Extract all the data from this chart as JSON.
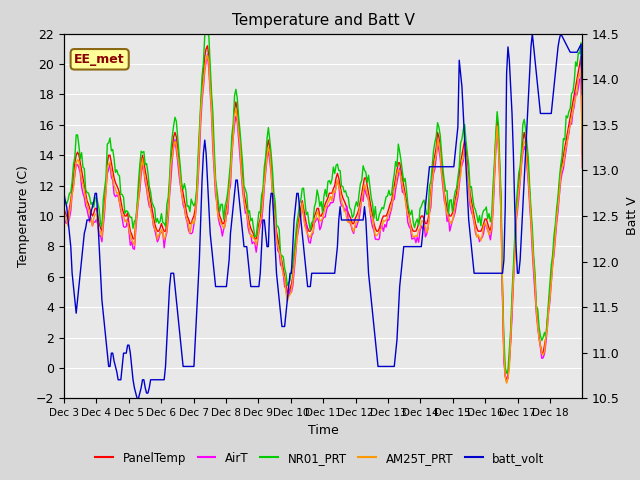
{
  "title": "Temperature and Batt V",
  "xlabel": "Time",
  "ylabel_left": "Temperature (C)",
  "ylabel_right": "Batt V",
  "annotation": "EE_met",
  "ylim_left": [
    -2,
    22
  ],
  "ylim_right": [
    10.5,
    14.5
  ],
  "fig_facecolor": "#d8d8d8",
  "ax_facecolor": "#e8e8e8",
  "grid_color": "#ffffff",
  "series_colors": {
    "PanelTemp": "#ff0000",
    "AirT": "#ff00ff",
    "NR01_PRT": "#00cc00",
    "AM25T_PRT": "#ff9900",
    "batt_volt": "#0000cc"
  },
  "xtick_labels": [
    "Dec 3",
    "Dec 4",
    "Dec 5",
    "Dec 6",
    "Dec 7",
    "Dec 8",
    "Dec 9",
    "Dec 10",
    "Dec 11",
    "Dec 12",
    "Dec 13",
    "Dec 14",
    "Dec 15",
    "Dec 16",
    "Dec 17",
    "Dec 18"
  ],
  "yticks_left": [
    -2,
    0,
    2,
    4,
    6,
    8,
    10,
    12,
    14,
    16,
    18,
    20,
    22
  ],
  "yticks_right": [
    10.5,
    11.0,
    11.5,
    12.0,
    12.5,
    13.0,
    13.5,
    14.0,
    14.5
  ],
  "n_days": 16,
  "pts_per_day": 24
}
